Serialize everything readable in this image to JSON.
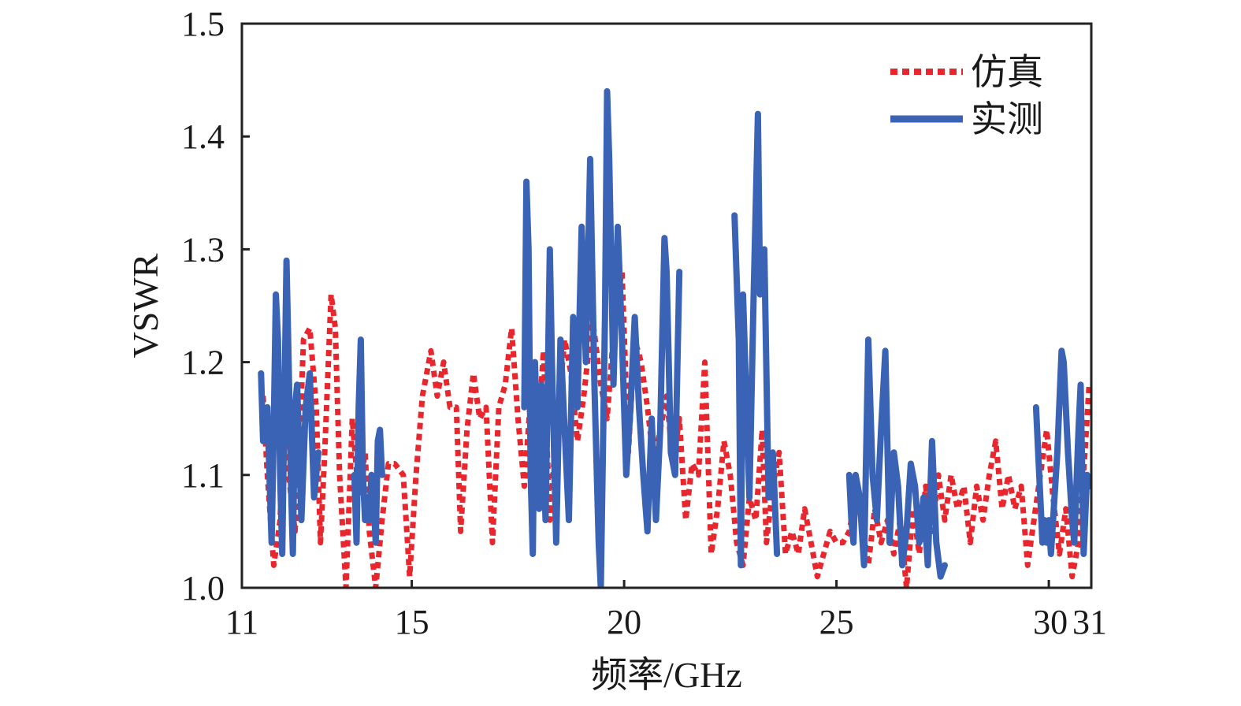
{
  "chart_data": {
    "type": "line",
    "xlabel": "频率/GHz",
    "ylabel": "VSWR",
    "xlim": [
      11,
      31
    ],
    "ylim": [
      1.0,
      1.5
    ],
    "x_ticks": [
      11,
      15,
      20,
      25,
      30,
      31
    ],
    "x_tick_labels": [
      "11",
      "15",
      "20",
      "25",
      "30",
      "31"
    ],
    "y_ticks": [
      1.0,
      1.1,
      1.2,
      1.3,
      1.4,
      1.5
    ],
    "y_tick_labels": [
      "1.0",
      "1.1",
      "1.2",
      "1.3",
      "1.4",
      "1.5"
    ],
    "grid": false,
    "legend_position": "top-right",
    "series": [
      {
        "name": "仿真",
        "color": "#e8262d",
        "style": "dotted",
        "points": [
          [
            11.5,
            1.17
          ],
          [
            11.6,
            1.1
          ],
          [
            11.75,
            1.02
          ],
          [
            11.9,
            1.06
          ],
          [
            12.0,
            1.16
          ],
          [
            12.1,
            1.1
          ],
          [
            12.25,
            1.05
          ],
          [
            12.35,
            1.12
          ],
          [
            12.45,
            1.22
          ],
          [
            12.6,
            1.23
          ],
          [
            12.75,
            1.16
          ],
          [
            12.85,
            1.04
          ],
          [
            12.95,
            1.12
          ],
          [
            13.1,
            1.26
          ],
          [
            13.2,
            1.23
          ],
          [
            13.3,
            1.1
          ],
          [
            13.45,
            1.0
          ],
          [
            13.6,
            1.15
          ],
          [
            13.75,
            1.08
          ],
          [
            13.9,
            1.12
          ],
          [
            14.0,
            1.05
          ],
          [
            14.15,
            1.0
          ],
          [
            14.3,
            1.06
          ],
          [
            14.45,
            1.11
          ],
          [
            14.6,
            1.11
          ],
          [
            14.8,
            1.1
          ],
          [
            14.95,
            1.01
          ],
          [
            15.1,
            1.1
          ],
          [
            15.25,
            1.17
          ],
          [
            15.45,
            1.21
          ],
          [
            15.6,
            1.17
          ],
          [
            15.75,
            1.2
          ],
          [
            15.9,
            1.16
          ],
          [
            16.05,
            1.16
          ],
          [
            16.15,
            1.05
          ],
          [
            16.3,
            1.14
          ],
          [
            16.45,
            1.19
          ],
          [
            16.6,
            1.15
          ],
          [
            16.75,
            1.16
          ],
          [
            16.9,
            1.04
          ],
          [
            17.05,
            1.16
          ],
          [
            17.2,
            1.18
          ],
          [
            17.35,
            1.23
          ],
          [
            17.5,
            1.15
          ],
          [
            17.65,
            1.09
          ],
          [
            17.8,
            1.17
          ],
          [
            17.95,
            1.12
          ],
          [
            18.1,
            1.21
          ],
          [
            18.25,
            1.06
          ],
          [
            18.4,
            1.14
          ],
          [
            18.6,
            1.22
          ],
          [
            18.75,
            1.19
          ],
          [
            18.9,
            1.13
          ],
          [
            19.05,
            1.17
          ],
          [
            19.25,
            1.24
          ],
          [
            19.45,
            1.18
          ],
          [
            19.6,
            1.15
          ],
          [
            19.8,
            1.25
          ],
          [
            19.95,
            1.28
          ],
          [
            20.1,
            1.12
          ],
          [
            20.25,
            1.22
          ],
          [
            20.4,
            1.2
          ],
          [
            20.55,
            1.16
          ],
          [
            20.7,
            1.11
          ],
          [
            20.85,
            1.14
          ],
          [
            21.0,
            1.17
          ],
          [
            21.15,
            1.11
          ],
          [
            21.3,
            1.15
          ],
          [
            21.45,
            1.06
          ],
          [
            21.6,
            1.11
          ],
          [
            21.75,
            1.1
          ],
          [
            21.9,
            1.2
          ],
          [
            22.05,
            1.03
          ],
          [
            22.2,
            1.07
          ],
          [
            22.35,
            1.13
          ],
          [
            22.5,
            1.1
          ],
          [
            22.65,
            1.04
          ],
          [
            22.8,
            1.02
          ],
          [
            22.95,
            1.08
          ],
          [
            23.1,
            1.06
          ],
          [
            23.25,
            1.14
          ],
          [
            23.35,
            1.04
          ],
          [
            23.5,
            1.09
          ],
          [
            23.65,
            1.12
          ],
          [
            23.8,
            1.03
          ],
          [
            23.95,
            1.05
          ],
          [
            24.1,
            1.03
          ],
          [
            24.25,
            1.07
          ],
          [
            24.4,
            1.04
          ],
          [
            24.55,
            1.01
          ],
          [
            24.7,
            1.03
          ],
          [
            24.85,
            1.05
          ],
          [
            25.0,
            1.04
          ],
          [
            25.15,
            1.04
          ],
          [
            25.3,
            1.05
          ],
          [
            25.45,
            1.08
          ],
          [
            25.6,
            1.06
          ],
          [
            25.75,
            1.02
          ],
          [
            25.9,
            1.07
          ],
          [
            26.05,
            1.04
          ],
          [
            26.2,
            1.06
          ],
          [
            26.35,
            1.03
          ],
          [
            26.5,
            1.06
          ],
          [
            26.65,
            1.0
          ],
          [
            26.8,
            1.07
          ],
          [
            26.95,
            1.03
          ],
          [
            27.1,
            1.09
          ],
          [
            27.25,
            1.05
          ],
          [
            27.4,
            1.1
          ],
          [
            27.55,
            1.06
          ],
          [
            27.7,
            1.1
          ],
          [
            27.85,
            1.07
          ],
          [
            28.0,
            1.09
          ],
          [
            28.15,
            1.04
          ],
          [
            28.3,
            1.09
          ],
          [
            28.45,
            1.06
          ],
          [
            28.6,
            1.1
          ],
          [
            28.75,
            1.13
          ],
          [
            28.9,
            1.07
          ],
          [
            29.05,
            1.1
          ],
          [
            29.2,
            1.07
          ],
          [
            29.35,
            1.09
          ],
          [
            29.5,
            1.02
          ],
          [
            29.65,
            1.06
          ],
          [
            29.8,
            1.1
          ],
          [
            29.95,
            1.14
          ],
          [
            30.1,
            1.08
          ],
          [
            30.25,
            1.03
          ],
          [
            30.4,
            1.07
          ],
          [
            30.55,
            1.01
          ],
          [
            30.7,
            1.04
          ],
          [
            30.85,
            1.12
          ],
          [
            30.95,
            1.18
          ]
        ]
      },
      {
        "name": "实测",
        "color": "#3a63b5",
        "style": "solid",
        "segments": [
          [
            [
              11.45,
              1.19
            ],
            [
              11.5,
              1.13
            ],
            [
              11.6,
              1.16
            ],
            [
              11.7,
              1.04
            ],
            [
              11.75,
              1.14
            ],
            [
              11.8,
              1.26
            ],
            [
              11.85,
              1.22
            ],
            [
              11.9,
              1.1
            ],
            [
              11.95,
              1.03
            ],
            [
              12.0,
              1.16
            ],
            [
              12.05,
              1.29
            ],
            [
              12.1,
              1.2
            ],
            [
              12.15,
              1.1
            ],
            [
              12.2,
              1.03
            ],
            [
              12.25,
              1.16
            ],
            [
              12.3,
              1.18
            ],
            [
              12.4,
              1.06
            ],
            [
              12.5,
              1.16
            ],
            [
              12.6,
              1.19
            ],
            [
              12.7,
              1.08
            ],
            [
              12.8,
              1.12
            ]
          ],
          [
            [
              13.65,
              1.1
            ],
            [
              13.7,
              1.04
            ],
            [
              13.75,
              1.16
            ],
            [
              13.8,
              1.22
            ],
            [
              13.85,
              1.1
            ],
            [
              13.9,
              1.06
            ],
            [
              13.95,
              1.08
            ],
            [
              14.0,
              1.06
            ],
            [
              14.05,
              1.1
            ],
            [
              14.1,
              1.08
            ],
            [
              14.15,
              1.04
            ],
            [
              14.2,
              1.13
            ],
            [
              14.25,
              1.14
            ],
            [
              14.3,
              1.1
            ]
          ],
          [
            [
              17.65,
              1.16
            ],
            [
              17.7,
              1.36
            ],
            [
              17.75,
              1.3
            ],
            [
              17.8,
              1.1
            ],
            [
              17.85,
              1.03
            ],
            [
              17.9,
              1.2
            ],
            [
              17.95,
              1.14
            ],
            [
              18.0,
              1.07
            ],
            [
              18.05,
              1.18
            ],
            [
              18.1,
              1.12
            ],
            [
              18.15,
              1.06
            ],
            [
              18.25,
              1.3
            ],
            [
              18.3,
              1.2
            ],
            [
              18.4,
              1.04
            ],
            [
              18.5,
              1.22
            ],
            [
              18.6,
              1.14
            ],
            [
              18.7,
              1.06
            ],
            [
              18.8,
              1.24
            ],
            [
              18.9,
              1.16
            ],
            [
              19.0,
              1.32
            ],
            [
              19.1,
              1.2
            ],
            [
              19.2,
              1.38
            ],
            [
              19.3,
              1.18
            ],
            [
              19.4,
              1.04
            ],
            [
              19.45,
              1.0
            ],
            [
              19.55,
              1.24
            ],
            [
              19.6,
              1.44
            ],
            [
              19.65,
              1.38
            ],
            [
              19.75,
              1.18
            ],
            [
              19.85,
              1.32
            ],
            [
              19.95,
              1.22
            ],
            [
              20.05,
              1.1
            ],
            [
              20.15,
              1.16
            ],
            [
              20.25,
              1.24
            ],
            [
              20.35,
              1.16
            ],
            [
              20.45,
              1.1
            ],
            [
              20.55,
              1.05
            ],
            [
              20.65,
              1.15
            ],
            [
              20.75,
              1.06
            ],
            [
              20.85,
              1.14
            ],
            [
              20.95,
              1.31
            ],
            [
              21.0,
              1.28
            ],
            [
              21.1,
              1.12
            ],
            [
              21.2,
              1.1
            ],
            [
              21.3,
              1.28
            ]
          ],
          [
            [
              22.6,
              1.33
            ],
            [
              22.7,
              1.22
            ],
            [
              22.75,
              1.02
            ],
            [
              22.8,
              1.26
            ],
            [
              22.85,
              1.2
            ],
            [
              22.95,
              1.08
            ],
            [
              23.05,
              1.26
            ],
            [
              23.15,
              1.42
            ],
            [
              23.2,
              1.26
            ],
            [
              23.3,
              1.3
            ],
            [
              23.4,
              1.08
            ],
            [
              23.5,
              1.12
            ],
            [
              23.6,
              1.03
            ]
          ],
          [
            [
              25.3,
              1.1
            ],
            [
              25.35,
              1.06
            ],
            [
              25.4,
              1.04
            ],
            [
              25.45,
              1.1
            ],
            [
              25.55,
              1.08
            ],
            [
              25.65,
              1.02
            ],
            [
              25.75,
              1.22
            ],
            [
              25.85,
              1.1
            ],
            [
              25.95,
              1.06
            ],
            [
              26.05,
              1.14
            ],
            [
              26.15,
              1.21
            ],
            [
              26.25,
              1.04
            ],
            [
              26.35,
              1.12
            ],
            [
              26.45,
              1.09
            ],
            [
              26.55,
              1.02
            ],
            [
              26.65,
              1.05
            ],
            [
              26.75,
              1.11
            ],
            [
              26.85,
              1.09
            ],
            [
              26.95,
              1.04
            ],
            [
              27.05,
              1.08
            ],
            [
              27.15,
              1.02
            ],
            [
              27.25,
              1.13
            ],
            [
              27.35,
              1.04
            ],
            [
              27.45,
              1.01
            ],
            [
              27.55,
              1.02
            ]
          ],
          [
            [
              29.7,
              1.16
            ],
            [
              29.8,
              1.08
            ],
            [
              29.85,
              1.04
            ],
            [
              29.9,
              1.06
            ],
            [
              29.95,
              1.04
            ],
            [
              30.0,
              1.06
            ],
            [
              30.05,
              1.03
            ],
            [
              30.1,
              1.06
            ],
            [
              30.2,
              1.12
            ],
            [
              30.3,
              1.21
            ],
            [
              30.35,
              1.2
            ],
            [
              30.45,
              1.12
            ],
            [
              30.55,
              1.06
            ],
            [
              30.6,
              1.04
            ],
            [
              30.7,
              1.14
            ],
            [
              30.75,
              1.18
            ],
            [
              30.82,
              1.03
            ],
            [
              30.9,
              1.1
            ],
            [
              30.95,
              1.09
            ]
          ]
        ]
      }
    ]
  }
}
